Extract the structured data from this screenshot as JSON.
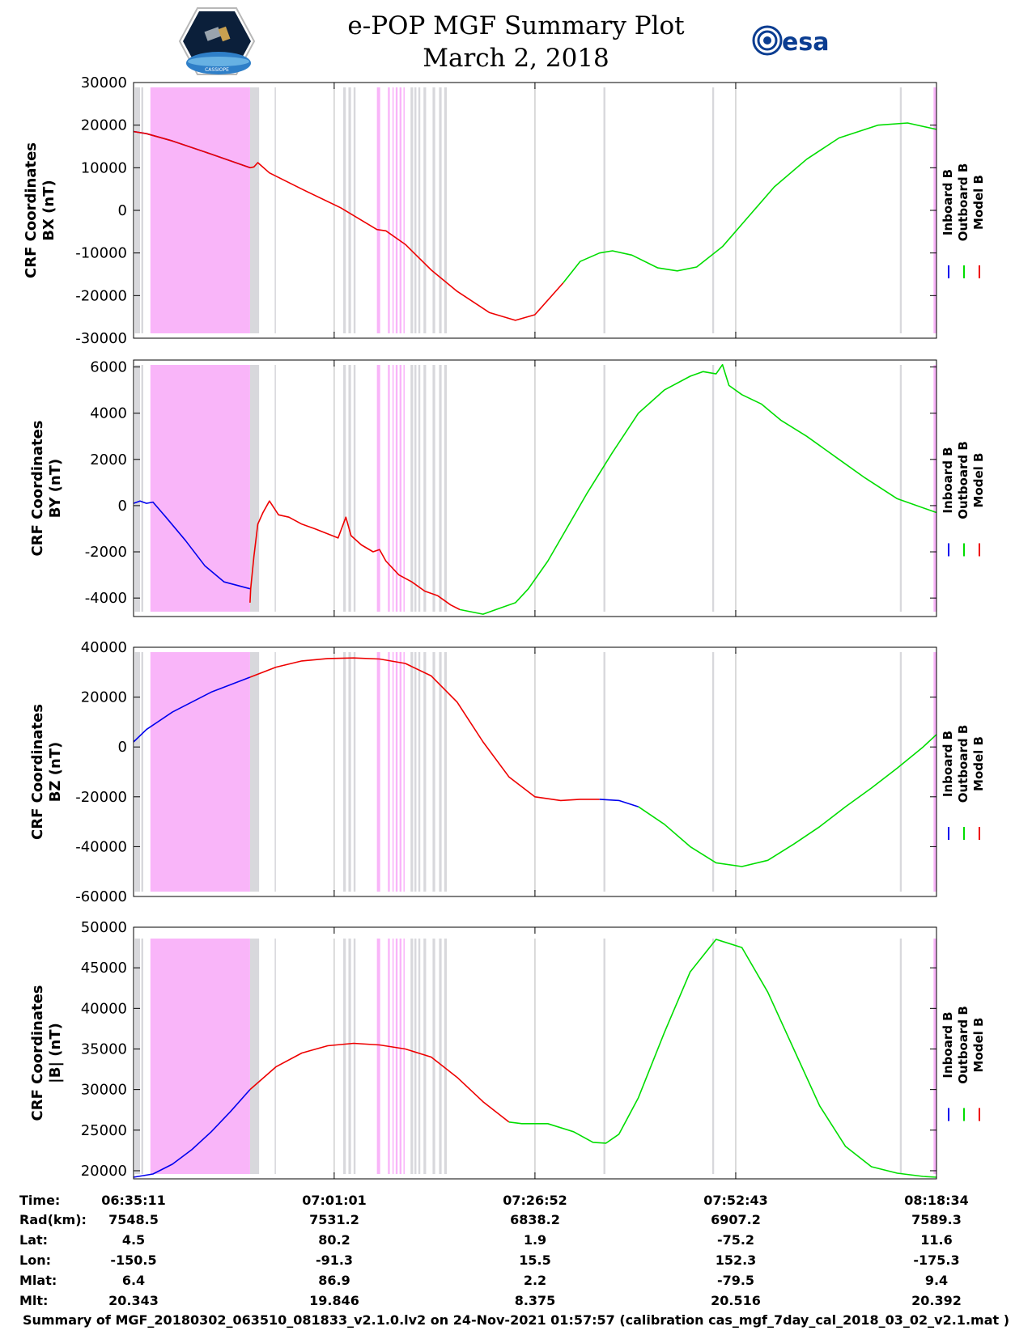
{
  "title": "e-POP MGF Summary Plot",
  "subtitle": "March 2, 2018",
  "logos": {
    "left": {
      "name": "cassiope-mission-patch",
      "text": "CASSIOPE"
    },
    "right": {
      "name": "esa-logo",
      "text": "esa"
    }
  },
  "legend_labels": [
    "Inboard B",
    "Outboard B",
    "Model B"
  ],
  "colors": {
    "inboard": "#0000ee",
    "outboard": "#00dd00",
    "model": "#ee0000",
    "gap_magenta": "#f9b5f9",
    "gap_gray": "#d8d8dc"
  },
  "footer": "Summary of MGF_20180302_063510_081833_v2.1.0.lv2 on 24-Nov-2021 01:57:57 (calibration cas_mgf_7day_cal_2018_03_02_v2.1.mat )",
  "ephemeris": {
    "row_labels": [
      "Time:",
      "Rad(km):",
      "Lat:",
      "Lon:",
      "Mlat:",
      "Mlt:"
    ],
    "columns": [
      [
        "06:35:11",
        "7548.5",
        "4.5",
        "-150.5",
        "6.4",
        "20.343"
      ],
      [
        "07:01:01",
        "7531.2",
        "80.2",
        "-91.3",
        "86.9",
        "19.846"
      ],
      [
        "07:26:52",
        "6838.2",
        "1.9",
        "15.5",
        "2.2",
        "8.375"
      ],
      [
        "07:52:43",
        "6907.2",
        "-75.2",
        "152.3",
        "-79.5",
        "20.516"
      ],
      [
        "08:18:34",
        "7589.3",
        "11.6",
        "-175.3",
        "9.4",
        "20.392"
      ]
    ]
  },
  "chart_data": [
    {
      "type": "line",
      "ylabel": [
        "CRF Coordinates",
        "BX (nT)"
      ],
      "xlim": [
        0,
        6203
      ],
      "ylim": [
        -30000,
        30000
      ],
      "yticks": [
        -30000,
        -20000,
        -10000,
        0,
        10000,
        20000,
        30000
      ],
      "xgrid": [
        1550,
        3101,
        4652
      ],
      "gaps_magenta": [
        [
          130,
          900
        ],
        [
          1880,
          1905
        ],
        [
          1965,
          1980
        ],
        [
          2000,
          2010
        ],
        [
          2025,
          2040
        ],
        [
          2055,
          2070
        ],
        [
          2085,
          2095
        ],
        [
          6180,
          6203
        ]
      ],
      "gaps_gray": [
        [
          10,
          50
        ],
        [
          60,
          75
        ],
        [
          900,
          970
        ],
        [
          1090,
          1100
        ],
        [
          1620,
          1640
        ],
        [
          1660,
          1680
        ],
        [
          1700,
          1715
        ],
        [
          2140,
          2160
        ],
        [
          2170,
          2185
        ],
        [
          2200,
          2215
        ],
        [
          2240,
          2260
        ],
        [
          2310,
          2330
        ],
        [
          2360,
          2380
        ],
        [
          2400,
          2420
        ],
        [
          3630,
          3645
        ],
        [
          4470,
          4485
        ],
        [
          5920,
          5935
        ]
      ],
      "series": [
        {
          "name": "Inboard B",
          "color": "#0000ee",
          "x": [
            0,
            100,
            300,
            600,
            900
          ],
          "y": [
            18500,
            18000,
            16300,
            13200,
            10000
          ]
        },
        {
          "name": "Model B",
          "color": "#ee0000",
          "x": [
            0,
            100,
            300,
            600,
            900,
            930,
            960,
            1050,
            1300,
            1600,
            1880,
            1950,
            2100,
            2300,
            2500,
            2750,
            2950,
            3100,
            3320
          ],
          "y": [
            18500,
            18000,
            16300,
            13200,
            10000,
            10200,
            11200,
            8800,
            5000,
            600,
            -4500,
            -4800,
            -8000,
            -14000,
            -19000,
            -24000,
            -25800,
            -24500,
            -17000
          ]
        },
        {
          "name": "Outboard B",
          "color": "#00dd00",
          "x": [
            3320,
            3450,
            3600,
            3700,
            3850,
            4050,
            4200,
            4350,
            4550,
            4750,
            4950,
            5200,
            5450,
            5750,
            5980,
            6203
          ],
          "y": [
            -17000,
            -12000,
            -10000,
            -9500,
            -10500,
            -13500,
            -14200,
            -13300,
            -8500,
            -1500,
            5500,
            12000,
            17000,
            20000,
            20500,
            19000
          ]
        }
      ]
    },
    {
      "type": "line",
      "ylabel": [
        "CRF Coordinates",
        "BY (nT)"
      ],
      "xlim": [
        0,
        6203
      ],
      "ylim": [
        -4800,
        6300
      ],
      "yticks": [
        -4000,
        -2000,
        0,
        2000,
        4000,
        6000
      ],
      "xgrid": [
        1550,
        3101,
        4652
      ],
      "gaps_magenta": [
        [
          130,
          900
        ],
        [
          1880,
          1905
        ],
        [
          1965,
          1980
        ],
        [
          2000,
          2010
        ],
        [
          2025,
          2040
        ],
        [
          2055,
          2070
        ],
        [
          2085,
          2095
        ],
        [
          6180,
          6203
        ]
      ],
      "gaps_gray": [
        [
          10,
          50
        ],
        [
          60,
          75
        ],
        [
          900,
          970
        ],
        [
          1090,
          1100
        ],
        [
          1620,
          1640
        ],
        [
          1660,
          1680
        ],
        [
          1700,
          1715
        ],
        [
          2140,
          2160
        ],
        [
          2170,
          2185
        ],
        [
          2200,
          2215
        ],
        [
          2240,
          2260
        ],
        [
          2310,
          2330
        ],
        [
          2360,
          2380
        ],
        [
          2400,
          2420
        ],
        [
          3630,
          3645
        ],
        [
          4470,
          4485
        ],
        [
          5920,
          5935
        ]
      ],
      "series": [
        {
          "name": "Inboard B",
          "color": "#0000ee",
          "x": [
            0,
            50,
            100,
            150,
            250,
            400,
            550,
            700,
            900
          ],
          "y": [
            100,
            200,
            100,
            150,
            -500,
            -1500,
            -2600,
            -3300,
            -3600
          ]
        },
        {
          "name": "Model B",
          "color": "#ee0000",
          "x": [
            900,
            905,
            930,
            960,
            1000,
            1050,
            1120,
            1200,
            1300,
            1400,
            1580,
            1640,
            1680,
            1760,
            1850,
            1900,
            1950,
            2050,
            2150,
            2250,
            2350,
            2450,
            2520
          ],
          "y": [
            -4200,
            -3600,
            -2200,
            -800,
            -300,
            200,
            -400,
            -500,
            -800,
            -1000,
            -1400,
            -500,
            -1300,
            -1700,
            -2000,
            -1900,
            -2400,
            -3000,
            -3300,
            -3700,
            -3900,
            -4300,
            -4500
          ]
        },
        {
          "name": "Outboard B",
          "color": "#00dd00",
          "x": [
            2520,
            2700,
            2800,
            2950,
            3050,
            3200,
            3500,
            3700,
            3900,
            4100,
            4300,
            4400,
            4500,
            4550,
            4600,
            4700,
            4850,
            5000,
            5200,
            5450,
            5650,
            5900,
            6203
          ],
          "y": [
            -4500,
            -4700,
            -4500,
            -4200,
            -3600,
            -2400,
            500,
            2300,
            4000,
            5000,
            5600,
            5800,
            5700,
            6100,
            5200,
            4800,
            4400,
            3700,
            3000,
            2000,
            1200,
            300,
            -300
          ]
        }
      ]
    },
    {
      "type": "line",
      "ylabel": [
        "CRF Coordinates",
        "BZ (nT)"
      ],
      "xlim": [
        0,
        6203
      ],
      "ylim": [
        -60000,
        40000
      ],
      "yticks": [
        -60000,
        -40000,
        -20000,
        0,
        20000,
        40000
      ],
      "xgrid": [
        1550,
        3101,
        4652
      ],
      "gaps_magenta": [
        [
          130,
          900
        ],
        [
          1880,
          1905
        ],
        [
          1965,
          1980
        ],
        [
          2000,
          2010
        ],
        [
          2025,
          2040
        ],
        [
          2055,
          2070
        ],
        [
          2085,
          2095
        ],
        [
          6180,
          6203
        ]
      ],
      "gaps_gray": [
        [
          10,
          50
        ],
        [
          60,
          75
        ],
        [
          900,
          970
        ],
        [
          1090,
          1100
        ],
        [
          1620,
          1640
        ],
        [
          1660,
          1680
        ],
        [
          1700,
          1715
        ],
        [
          2140,
          2160
        ],
        [
          2170,
          2185
        ],
        [
          2200,
          2215
        ],
        [
          2240,
          2260
        ],
        [
          2310,
          2330
        ],
        [
          2360,
          2380
        ],
        [
          2400,
          2420
        ],
        [
          3630,
          3645
        ],
        [
          4470,
          4485
        ],
        [
          5920,
          5935
        ]
      ],
      "series": [
        {
          "name": "Inboard B",
          "color": "#0000ee",
          "x": [
            0,
            100,
            300,
            600,
            900
          ],
          "y": [
            2000,
            7000,
            14000,
            22000,
            28000
          ]
        },
        {
          "name": "Model B",
          "color": "#ee0000",
          "x": [
            900,
            1100,
            1300,
            1500,
            1700,
            1900,
            2100,
            2300,
            2500,
            2700,
            2900,
            3100,
            3300,
            3450,
            3600
          ],
          "y": [
            28000,
            32000,
            34500,
            35500,
            35700,
            35300,
            33500,
            28500,
            18000,
            2000,
            -12000,
            -20000,
            -21500,
            -21000,
            -21000
          ]
        },
        {
          "name": "Inboard B",
          "color": "#0000ee",
          "x": [
            3600,
            3750,
            3900
          ],
          "y": [
            -21000,
            -21500,
            -24000
          ]
        },
        {
          "name": "Outboard B",
          "color": "#00dd00",
          "x": [
            3900,
            4100,
            4300,
            4500,
            4700,
            4900,
            5100,
            5300,
            5500,
            5700,
            5900,
            6100,
            6203
          ],
          "y": [
            -24000,
            -31000,
            -40000,
            -46500,
            -48000,
            -45500,
            -39000,
            -32000,
            -24000,
            -16500,
            -8500,
            0,
            5000
          ]
        }
      ]
    },
    {
      "type": "line",
      "ylabel": [
        "CRF Coordinates",
        "|B| (nT)"
      ],
      "xlim": [
        0,
        6203
      ],
      "ylim": [
        19000,
        50000
      ],
      "yticks": [
        20000,
        25000,
        30000,
        35000,
        40000,
        45000,
        50000
      ],
      "xgrid": [
        1550,
        3101,
        4652
      ],
      "gaps_magenta": [
        [
          130,
          900
        ],
        [
          1880,
          1905
        ],
        [
          1965,
          1980
        ],
        [
          2000,
          2010
        ],
        [
          2025,
          2040
        ],
        [
          2055,
          2070
        ],
        [
          2085,
          2095
        ],
        [
          6180,
          6203
        ]
      ],
      "gaps_gray": [
        [
          10,
          50
        ],
        [
          60,
          75
        ],
        [
          900,
          970
        ],
        [
          1090,
          1100
        ],
        [
          1620,
          1640
        ],
        [
          1660,
          1680
        ],
        [
          1700,
          1715
        ],
        [
          2140,
          2160
        ],
        [
          2170,
          2185
        ],
        [
          2200,
          2215
        ],
        [
          2240,
          2260
        ],
        [
          2310,
          2330
        ],
        [
          2360,
          2380
        ],
        [
          2400,
          2420
        ],
        [
          3630,
          3645
        ],
        [
          4470,
          4485
        ],
        [
          5920,
          5935
        ]
      ],
      "series": [
        {
          "name": "Inboard B",
          "color": "#0000ee",
          "x": [
            0,
            150,
            300,
            450,
            600,
            750,
            900
          ],
          "y": [
            19200,
            19600,
            20800,
            22600,
            24800,
            27300,
            30000
          ]
        },
        {
          "name": "Model B",
          "color": "#ee0000",
          "x": [
            900,
            1100,
            1300,
            1500,
            1700,
            1900,
            2100,
            2300,
            2500,
            2700,
            2900
          ],
          "y": [
            30000,
            32800,
            34500,
            35400,
            35700,
            35500,
            35000,
            34000,
            31500,
            28500,
            26000
          ]
        },
        {
          "name": "Outboard B",
          "color": "#00dd00",
          "x": [
            2900,
            3000,
            3200,
            3400,
            3550,
            3650,
            3750,
            3900,
            4100,
            4300,
            4500,
            4700,
            4900,
            5100,
            5300,
            5500,
            5700,
            5900,
            6100,
            6203
          ],
          "y": [
            26000,
            25800,
            25800,
            24800,
            23500,
            23400,
            24500,
            29000,
            37000,
            44500,
            48500,
            47500,
            42000,
            35000,
            28000,
            23000,
            20500,
            19700,
            19300,
            19200
          ]
        }
      ]
    }
  ]
}
